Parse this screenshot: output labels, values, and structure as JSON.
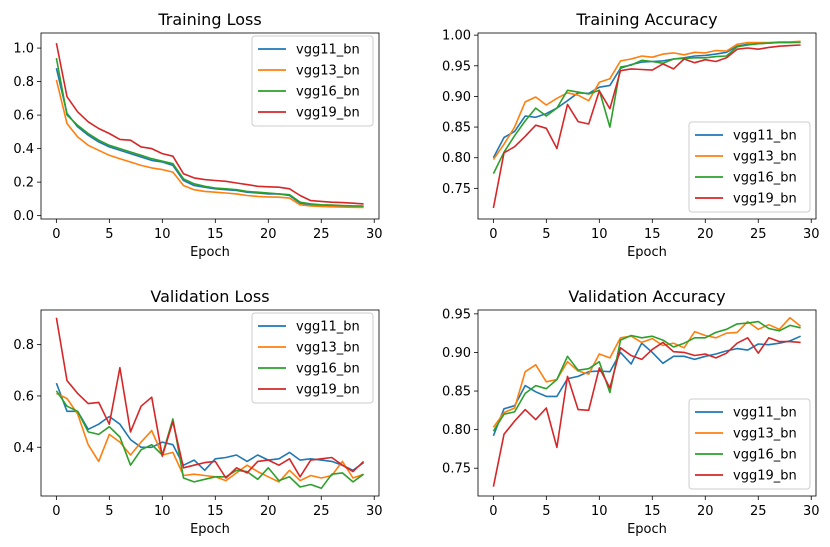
{
  "chart_data": [
    {
      "type": "line",
      "title": "Training Loss",
      "xlabel": "Epoch",
      "ylabel": "",
      "xlim": [
        -1.45,
        30.45
      ],
      "ylim": [
        -0.02,
        1.09
      ],
      "xticks": [
        0,
        5,
        10,
        15,
        20,
        25,
        30
      ],
      "yticks": [
        0.0,
        0.2,
        0.4,
        0.6,
        0.8,
        1.0
      ],
      "ytick_labels": [
        "0.0",
        "0.2",
        "0.4",
        "0.6",
        "0.8",
        "1.0"
      ],
      "legend": "upper right",
      "x": [
        0,
        1,
        2,
        3,
        4,
        5,
        6,
        7,
        8,
        9,
        10,
        11,
        12,
        13,
        14,
        15,
        16,
        17,
        18,
        19,
        20,
        21,
        22,
        23,
        24,
        25,
        26,
        27,
        28,
        29
      ],
      "series": [
        {
          "name": "vgg11_bn",
          "color": "#1f77b4",
          "values": [
            0.88,
            0.61,
            0.53,
            0.48,
            0.44,
            0.41,
            0.39,
            0.37,
            0.35,
            0.33,
            0.32,
            0.3,
            0.21,
            0.18,
            0.17,
            0.16,
            0.155,
            0.15,
            0.14,
            0.135,
            0.13,
            0.13,
            0.12,
            0.075,
            0.065,
            0.062,
            0.06,
            0.058,
            0.056,
            0.055
          ]
        },
        {
          "name": "vgg13_bn",
          "color": "#ff7f0e",
          "values": [
            0.81,
            0.55,
            0.47,
            0.42,
            0.39,
            0.36,
            0.34,
            0.32,
            0.3,
            0.285,
            0.275,
            0.26,
            0.18,
            0.155,
            0.145,
            0.14,
            0.135,
            0.13,
            0.12,
            0.115,
            0.112,
            0.11,
            0.105,
            0.065,
            0.058,
            0.055,
            0.053,
            0.051,
            0.05,
            0.049
          ]
        },
        {
          "name": "vgg16_bn",
          "color": "#2ca02c",
          "values": [
            0.94,
            0.6,
            0.54,
            0.49,
            0.45,
            0.42,
            0.4,
            0.38,
            0.36,
            0.34,
            0.325,
            0.31,
            0.22,
            0.19,
            0.175,
            0.165,
            0.16,
            0.155,
            0.145,
            0.14,
            0.135,
            0.13,
            0.125,
            0.08,
            0.07,
            0.065,
            0.063,
            0.06,
            0.058,
            0.057
          ]
        },
        {
          "name": "vgg19_bn",
          "color": "#d62728",
          "values": [
            1.03,
            0.71,
            0.62,
            0.56,
            0.52,
            0.49,
            0.455,
            0.45,
            0.41,
            0.4,
            0.37,
            0.355,
            0.25,
            0.225,
            0.215,
            0.21,
            0.205,
            0.195,
            0.185,
            0.175,
            0.172,
            0.17,
            0.16,
            0.12,
            0.09,
            0.085,
            0.08,
            0.078,
            0.074,
            0.07
          ]
        }
      ]
    },
    {
      "type": "line",
      "title": "Training Accuracy",
      "xlabel": "Epoch",
      "ylabel": "",
      "xlim": [
        -1.45,
        30.45
      ],
      "ylim": [
        0.7,
        1.0035
      ],
      "xticks": [
        0,
        5,
        10,
        15,
        20,
        25,
        30
      ],
      "yticks": [
        0.75,
        0.8,
        0.85,
        0.9,
        0.95,
        1.0
      ],
      "ytick_labels": [
        "0.75",
        "0.80",
        "0.85",
        "0.90",
        "0.95",
        "1.00"
      ],
      "legend": "lower right",
      "x": [
        0,
        1,
        2,
        3,
        4,
        5,
        6,
        7,
        8,
        9,
        10,
        11,
        12,
        13,
        14,
        15,
        16,
        17,
        18,
        19,
        20,
        21,
        22,
        23,
        24,
        25,
        26,
        27,
        28,
        29
      ],
      "series": [
        {
          "name": "vgg11_bn",
          "color": "#1f77b4",
          "values": [
            0.8,
            0.833,
            0.843,
            0.868,
            0.866,
            0.872,
            0.881,
            0.893,
            0.906,
            0.905,
            0.915,
            0.918,
            0.946,
            0.952,
            0.956,
            0.957,
            0.958,
            0.961,
            0.963,
            0.966,
            0.967,
            0.969,
            0.972,
            0.982,
            0.985,
            0.986,
            0.987,
            0.988,
            0.988,
            0.989
          ]
        },
        {
          "name": "vgg13_bn",
          "color": "#ff7f0e",
          "values": [
            0.797,
            0.822,
            0.85,
            0.891,
            0.899,
            0.886,
            0.897,
            0.906,
            0.902,
            0.893,
            0.923,
            0.929,
            0.958,
            0.961,
            0.966,
            0.964,
            0.969,
            0.971,
            0.968,
            0.972,
            0.971,
            0.975,
            0.974,
            0.985,
            0.988,
            0.988,
            0.988,
            0.989,
            0.989,
            0.99
          ]
        },
        {
          "name": "vgg16_bn",
          "color": "#2ca02c",
          "values": [
            0.774,
            0.809,
            0.836,
            0.86,
            0.881,
            0.868,
            0.881,
            0.91,
            0.907,
            0.904,
            0.91,
            0.85,
            0.948,
            0.951,
            0.959,
            0.957,
            0.954,
            0.961,
            0.962,
            0.963,
            0.963,
            0.965,
            0.966,
            0.981,
            0.984,
            0.986,
            0.987,
            0.988,
            0.988,
            0.988
          ]
        },
        {
          "name": "vgg19_bn",
          "color": "#d62728",
          "values": [
            0.718,
            0.808,
            0.818,
            0.835,
            0.853,
            0.848,
            0.815,
            0.887,
            0.859,
            0.855,
            0.909,
            0.88,
            0.942,
            0.945,
            0.944,
            0.943,
            0.953,
            0.945,
            0.961,
            0.955,
            0.96,
            0.957,
            0.963,
            0.977,
            0.979,
            0.977,
            0.98,
            0.982,
            0.983,
            0.984
          ]
        }
      ]
    },
    {
      "type": "line",
      "title": "Validation Loss",
      "xlabel": "Epoch",
      "ylabel": "",
      "xlim": [
        -1.45,
        30.45
      ],
      "ylim": [
        0.21,
        0.935
      ],
      "xticks": [
        0,
        5,
        10,
        15,
        20,
        25,
        30
      ],
      "yticks": [
        0.4,
        0.6,
        0.8
      ],
      "ytick_labels": [
        "0.4",
        "0.6",
        "0.8"
      ],
      "legend": "upper right",
      "x": [
        0,
        1,
        2,
        3,
        4,
        5,
        6,
        7,
        8,
        9,
        10,
        11,
        12,
        13,
        14,
        15,
        16,
        17,
        18,
        19,
        20,
        21,
        22,
        23,
        24,
        25,
        26,
        27,
        28,
        29
      ],
      "series": [
        {
          "name": "vgg11_bn",
          "color": "#1f77b4",
          "values": [
            0.65,
            0.54,
            0.54,
            0.47,
            0.49,
            0.52,
            0.49,
            0.43,
            0.4,
            0.4,
            0.42,
            0.41,
            0.33,
            0.35,
            0.31,
            0.355,
            0.36,
            0.37,
            0.345,
            0.37,
            0.35,
            0.355,
            0.38,
            0.35,
            0.355,
            0.35,
            0.345,
            0.33,
            0.31,
            0.34
          ]
        },
        {
          "name": "vgg13_bn",
          "color": "#ff7f0e",
          "values": [
            0.61,
            0.59,
            0.53,
            0.41,
            0.345,
            0.45,
            0.42,
            0.37,
            0.42,
            0.465,
            0.37,
            0.38,
            0.29,
            0.295,
            0.29,
            0.285,
            0.27,
            0.3,
            0.33,
            0.305,
            0.285,
            0.265,
            0.31,
            0.27,
            0.29,
            0.28,
            0.29,
            0.345,
            0.28,
            0.295
          ]
        },
        {
          "name": "vgg16_bn",
          "color": "#2ca02c",
          "values": [
            0.62,
            0.56,
            0.54,
            0.46,
            0.45,
            0.48,
            0.44,
            0.33,
            0.39,
            0.41,
            0.37,
            0.51,
            0.28,
            0.265,
            0.275,
            0.285,
            0.285,
            0.31,
            0.305,
            0.275,
            0.32,
            0.27,
            0.285,
            0.245,
            0.255,
            0.24,
            0.295,
            0.3,
            0.265,
            0.295
          ]
        },
        {
          "name": "vgg19_bn",
          "color": "#d62728",
          "values": [
            0.905,
            0.66,
            0.61,
            0.57,
            0.575,
            0.49,
            0.71,
            0.46,
            0.56,
            0.595,
            0.365,
            0.5,
            0.32,
            0.33,
            0.34,
            0.345,
            0.28,
            0.32,
            0.3,
            0.345,
            0.35,
            0.33,
            0.355,
            0.285,
            0.35,
            0.355,
            0.36,
            0.33,
            0.305,
            0.345
          ]
        }
      ]
    },
    {
      "type": "line",
      "title": "Validation Accuracy",
      "xlabel": "Epoch",
      "ylabel": "",
      "xlim": [
        -1.45,
        30.45
      ],
      "ylim": [
        0.714,
        0.955
      ],
      "xticks": [
        0,
        5,
        10,
        15,
        20,
        25,
        30
      ],
      "yticks": [
        0.75,
        0.8,
        0.85,
        0.9,
        0.95
      ],
      "ytick_labels": [
        "0.75",
        "0.80",
        "0.85",
        "0.90",
        "0.95"
      ],
      "legend": "lower right",
      "x": [
        0,
        1,
        2,
        3,
        4,
        5,
        6,
        7,
        8,
        9,
        10,
        11,
        12,
        13,
        14,
        15,
        16,
        17,
        18,
        19,
        20,
        21,
        22,
        23,
        24,
        25,
        26,
        27,
        28,
        29
      ],
      "series": [
        {
          "name": "vgg11_bn",
          "color": "#1f77b4",
          "values": [
            0.792,
            0.827,
            0.831,
            0.857,
            0.849,
            0.843,
            0.843,
            0.866,
            0.869,
            0.875,
            0.876,
            0.875,
            0.9,
            0.885,
            0.912,
            0.9,
            0.886,
            0.895,
            0.895,
            0.891,
            0.895,
            0.898,
            0.902,
            0.905,
            0.903,
            0.911,
            0.91,
            0.912,
            0.915,
            0.921
          ]
        },
        {
          "name": "vgg13_bn",
          "color": "#ff7f0e",
          "values": [
            0.803,
            0.822,
            0.828,
            0.875,
            0.884,
            0.862,
            0.865,
            0.888,
            0.876,
            0.872,
            0.898,
            0.893,
            0.919,
            0.921,
            0.913,
            0.918,
            0.909,
            0.912,
            0.906,
            0.927,
            0.922,
            0.919,
            0.925,
            0.926,
            0.94,
            0.93,
            0.936,
            0.93,
            0.945,
            0.934
          ]
        },
        {
          "name": "vgg16_bn",
          "color": "#2ca02c",
          "values": [
            0.798,
            0.82,
            0.823,
            0.847,
            0.857,
            0.853,
            0.865,
            0.895,
            0.877,
            0.879,
            0.888,
            0.848,
            0.916,
            0.922,
            0.919,
            0.921,
            0.916,
            0.907,
            0.912,
            0.919,
            0.919,
            0.926,
            0.93,
            0.937,
            0.938,
            0.94,
            0.931,
            0.928,
            0.935,
            0.932
          ]
        },
        {
          "name": "vgg19_bn",
          "color": "#d62728",
          "values": [
            0.726,
            0.794,
            0.811,
            0.826,
            0.813,
            0.828,
            0.777,
            0.869,
            0.826,
            0.825,
            0.88,
            0.854,
            0.906,
            0.896,
            0.891,
            0.904,
            0.913,
            0.901,
            0.9,
            0.896,
            0.898,
            0.893,
            0.899,
            0.912,
            0.919,
            0.899,
            0.919,
            0.914,
            0.914,
            0.913
          ]
        }
      ]
    }
  ]
}
